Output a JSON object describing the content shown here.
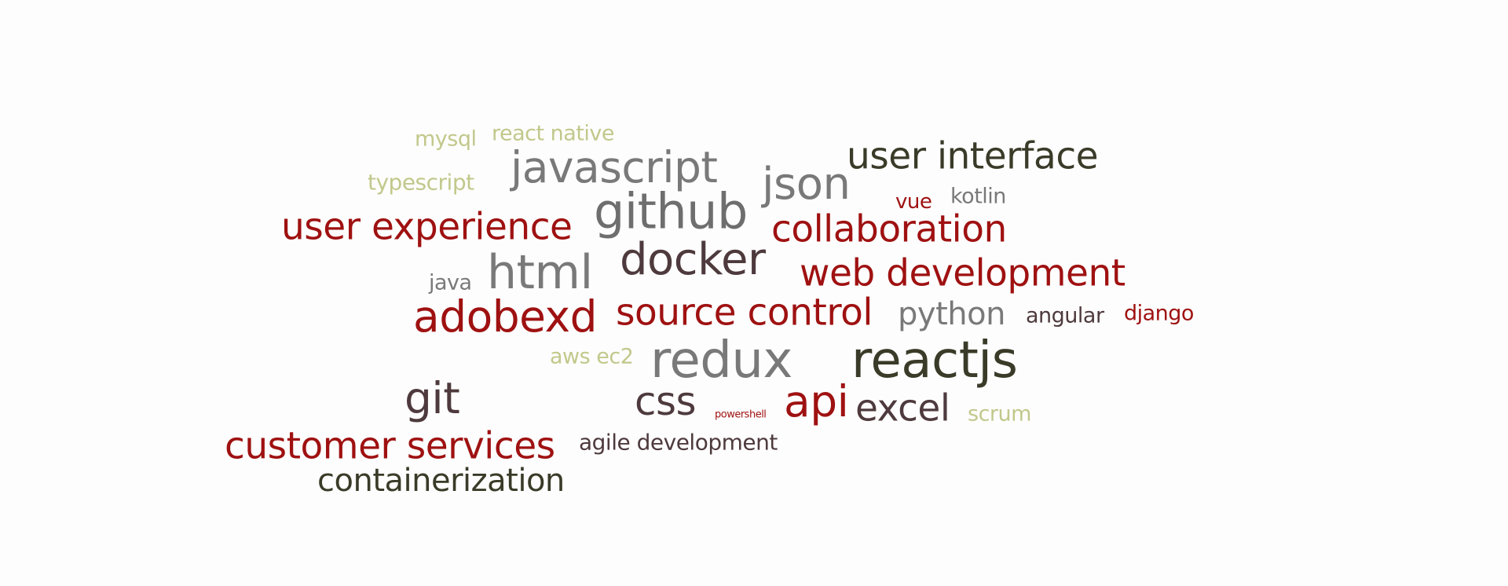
{
  "palette": {
    "olive": "#c2c88b",
    "gray": "#797979",
    "darkgray": "#6e6e6e",
    "charcoal": "#3a3b28",
    "red": "#9f1111",
    "plum": "#4e3a3d"
  },
  "words": [
    {
      "text": "mysql",
      "color": "olive",
      "weight": 27
    },
    {
      "text": "react native",
      "color": "olive",
      "weight": 27
    },
    {
      "text": "javascript",
      "color": "gray",
      "weight": 55
    },
    {
      "text": "typescript",
      "color": "olive",
      "weight": 28
    },
    {
      "text": "json",
      "color": "gray",
      "weight": 56
    },
    {
      "text": "user interface",
      "color": "charcoal",
      "weight": 47
    },
    {
      "text": "vue",
      "color": "red",
      "weight": 26
    },
    {
      "text": "kotlin",
      "color": "gray",
      "weight": 27
    },
    {
      "text": "github",
      "color": "darkgray",
      "weight": 62
    },
    {
      "text": "user experience",
      "color": "red",
      "weight": 47
    },
    {
      "text": "collaboration",
      "color": "red",
      "weight": 47
    },
    {
      "text": "java",
      "color": "gray",
      "weight": 27
    },
    {
      "text": "html",
      "color": "gray",
      "weight": 60
    },
    {
      "text": "docker",
      "color": "plum",
      "weight": 56
    },
    {
      "text": "web development",
      "color": "red",
      "weight": 47
    },
    {
      "text": "adobexd",
      "color": "red",
      "weight": 55
    },
    {
      "text": "source control",
      "color": "red",
      "weight": 47
    },
    {
      "text": "python",
      "color": "gray",
      "weight": 40
    },
    {
      "text": "angular",
      "color": "plum",
      "weight": 27
    },
    {
      "text": "django",
      "color": "red",
      "weight": 27
    },
    {
      "text": "aws ec2",
      "color": "olive",
      "weight": 27
    },
    {
      "text": "redux",
      "color": "gray",
      "weight": 64
    },
    {
      "text": "reactjs",
      "color": "charcoal",
      "weight": 64
    },
    {
      "text": "git",
      "color": "plum",
      "weight": 55
    },
    {
      "text": "css",
      "color": "plum",
      "weight": 50
    },
    {
      "text": "powershell",
      "color": "red",
      "weight": 13
    },
    {
      "text": "api",
      "color": "red",
      "weight": 55
    },
    {
      "text": "excel",
      "color": "plum",
      "weight": 47
    },
    {
      "text": "scrum",
      "color": "olive",
      "weight": 27
    },
    {
      "text": "customer services",
      "color": "red",
      "weight": 47
    },
    {
      "text": "agile development",
      "color": "plum",
      "weight": 28
    },
    {
      "text": "containerization",
      "color": "charcoal",
      "weight": 40
    }
  ]
}
